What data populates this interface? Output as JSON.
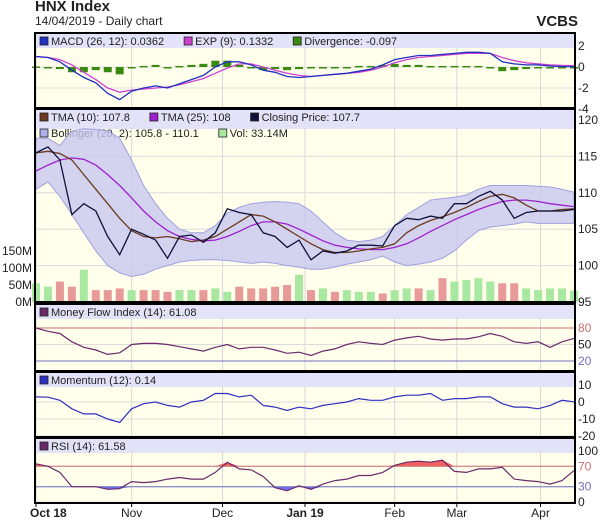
{
  "header": {
    "title": "HNX Index",
    "subtitle": "14/04/2019 - Daily chart",
    "brand": "VCBS"
  },
  "colors": {
    "panel_bg": "#ffffec",
    "legend_bg": "#e2e2f8",
    "close": "#10103a",
    "tma10": "#6b3a1e",
    "tma25": "#a020d0",
    "bollinger_fill": "#c8c8f0",
    "bollinger_line": "#a0a0e0",
    "vol_up": "#a8e8a0",
    "vol_down": "#e89a98",
    "macd": "#2030c0",
    "exp": "#d040d0",
    "divergence": "#3a8a10",
    "mfi": "#6a2a6a",
    "momentum": "#3030c0",
    "rsi": "#6a2a6a",
    "upper_line": "#d07070",
    "lower_line": "#7070c0",
    "rsi_over": "#f06060",
    "rsi_under": "#7070f0"
  },
  "x_axis": {
    "ticks": [
      {
        "label": "Oct 18",
        "at": 0,
        "bold": true
      },
      {
        "label": "Nov",
        "at": 8,
        "bold": false
      },
      {
        "label": "Dec",
        "at": 15.6,
        "bold": false
      },
      {
        "label": "Jan 19",
        "at": 22.5,
        "bold": true
      },
      {
        "label": "Feb",
        "at": 30,
        "bold": false
      },
      {
        "label": "Mar",
        "at": 35.2,
        "bold": false
      },
      {
        "label": "Apr",
        "at": 42.2,
        "bold": false
      }
    ]
  },
  "chart_data": [
    {
      "type": "bar",
      "panel": "macd",
      "legend": [
        {
          "label": "MACD (26, 12): 0.0362",
          "color": "#2030c0"
        },
        {
          "label": "EXP (9): 0.1332",
          "color": "#d040d0"
        },
        {
          "label": "Divergence: -0.097",
          "color": "#3a8a10"
        }
      ],
      "ylim": [
        -4,
        2
      ],
      "yticks": [
        "2",
        "0",
        "-2",
        "-4"
      ],
      "ytick_values": [
        2,
        0,
        -2,
        -4
      ],
      "series": [
        {
          "name": "MACD (26, 12)",
          "kind": "line",
          "values": [
            1.0,
            0.9,
            0.5,
            -0.3,
            -1.0,
            -1.5,
            -2.5,
            -3.1,
            -2.3,
            -2.0,
            -1.8,
            -2.0,
            -1.6,
            -1.2,
            -0.8,
            0.0,
            0.5,
            0.5,
            0.2,
            -0.3,
            -0.5,
            -0.9,
            -1.0,
            -0.9,
            -0.8,
            -0.7,
            -0.6,
            -0.4,
            -0.2,
            0.2,
            0.7,
            0.9,
            1.1,
            1.1,
            1.2,
            1.3,
            1.4,
            1.4,
            1.3,
            0.5,
            0.3,
            0.2,
            0.2,
            0.1,
            0.05,
            0.04
          ]
        },
        {
          "name": "EXP (9)",
          "kind": "line",
          "values": [
            1.0,
            0.9,
            0.7,
            0.2,
            -0.5,
            -1.2,
            -2.0,
            -2.4,
            -2.2,
            -2.1,
            -2.0,
            -1.9,
            -1.7,
            -1.4,
            -1.1,
            -0.6,
            -0.1,
            0.3,
            0.3,
            0.0,
            -0.3,
            -0.6,
            -0.8,
            -0.9,
            -0.8,
            -0.7,
            -0.6,
            -0.5,
            -0.3,
            0.0,
            0.4,
            0.7,
            0.9,
            1.0,
            1.1,
            1.2,
            1.3,
            1.3,
            1.3,
            0.9,
            0.6,
            0.4,
            0.3,
            0.2,
            0.15,
            0.13
          ]
        },
        {
          "name": "Divergence",
          "kind": "bar",
          "values": [
            0.05,
            0.0,
            -0.2,
            -0.5,
            -0.5,
            -0.3,
            -0.5,
            -0.7,
            -0.1,
            0.1,
            0.2,
            -0.1,
            0.1,
            0.2,
            0.3,
            0.6,
            0.6,
            0.2,
            -0.1,
            -0.3,
            -0.2,
            -0.3,
            -0.2,
            0.0,
            0.0,
            0.0,
            0.0,
            0.1,
            0.1,
            0.2,
            0.3,
            0.2,
            0.2,
            0.1,
            0.1,
            0.1,
            0.1,
            0.1,
            0.0,
            -0.4,
            -0.3,
            -0.2,
            -0.1,
            -0.1,
            -0.1,
            -0.097
          ]
        }
      ]
    },
    {
      "type": "line",
      "panel": "price",
      "legend": [
        {
          "label": "TMA (10): 107.8",
          "color": "#6b3a1e"
        },
        {
          "label": "TMA (25): 108",
          "color": "#a020d0"
        },
        {
          "label": "Closing Price: 107.7",
          "color": "#10103a"
        },
        {
          "label": "Bollinger (20, 2): 105.8 - 110.1",
          "color": "#b0b0ec"
        },
        {
          "label": "Vol: 33.14M",
          "color": "#a8e8a0"
        }
      ],
      "ylim": [
        95,
        120
      ],
      "yticks": [
        "120",
        "115",
        "110",
        "105",
        "100",
        "95"
      ],
      "ytick_values": [
        120,
        115,
        110,
        105,
        100,
        95
      ],
      "volume_ticks": [
        "150M",
        "100M",
        "50M",
        "0M"
      ],
      "volume_tick_values": [
        150,
        100,
        50,
        0
      ],
      "series": [
        {
          "name": "Closing Price",
          "values": [
            115.5,
            116.3,
            114.5,
            107,
            108.5,
            107.5,
            104,
            101.5,
            105,
            104.3,
            103.5,
            101,
            104,
            104.2,
            103.2,
            104.5,
            107.8,
            107.3,
            107,
            104.5,
            104,
            102.5,
            103.5,
            100.8,
            102,
            101.7,
            102,
            102.8,
            102.8,
            102.7,
            105.5,
            106.5,
            106.3,
            106.8,
            106.5,
            108.5,
            108.5,
            109.5,
            110.2,
            109,
            106.5,
            107.3,
            107.5,
            107.5,
            107.5,
            107.7
          ]
        },
        {
          "name": "TMA (10)",
          "values": [
            115.5,
            115.7,
            115.4,
            114.5,
            112.5,
            110.5,
            108.5,
            106.5,
            104.8,
            104,
            103.8,
            104,
            103.7,
            103.3,
            103.5,
            104,
            105,
            106,
            107,
            106.8,
            106,
            105,
            104,
            103,
            102.2,
            101.8,
            101.8,
            102,
            102.3,
            102.5,
            103,
            104.5,
            105.5,
            106.2,
            106.7,
            107.3,
            108,
            108.8,
            109.5,
            109.8,
            109.3,
            108.3,
            107.5,
            107.5,
            107.7,
            107.8
          ]
        },
        {
          "name": "TMA (25)",
          "values": [
            113,
            113.8,
            114.5,
            114.8,
            114.6,
            113.8,
            112.5,
            111,
            109.3,
            107.5,
            106,
            104.8,
            104,
            103.6,
            103.4,
            103.5,
            104,
            104.7,
            105.5,
            106,
            106,
            105.7,
            105,
            104.2,
            103.4,
            102.8,
            102.5,
            102.3,
            102.2,
            102.2,
            102.5,
            103,
            103.8,
            104.7,
            105.5,
            106.3,
            107,
            107.7,
            108.3,
            108.8,
            109,
            109,
            108.8,
            108.5,
            108.3,
            108.1
          ]
        },
        {
          "name": "Bollinger upper",
          "values": [
            117.5,
            117.5,
            116.5,
            118.5,
            118.8,
            118.7,
            118.5,
            117.5,
            114.5,
            111,
            108.5,
            106.5,
            105,
            104.5,
            104.5,
            105.5,
            107.2,
            108,
            108.5,
            108.7,
            108.8,
            108.7,
            108.5,
            107.5,
            106,
            104.5,
            103.5,
            103.3,
            103.5,
            104,
            105.5,
            107,
            108,
            109,
            109.2,
            109.4,
            109.7,
            110.5,
            111,
            111,
            111,
            111,
            110.9,
            110.8,
            110.5,
            110.1
          ]
        },
        {
          "name": "Bollinger lower",
          "values": [
            110.5,
            111.5,
            109.5,
            107,
            104.5,
            102,
            100,
            99,
            98.5,
            98.8,
            99.5,
            100,
            100.5,
            100.7,
            100.8,
            100.8,
            100.7,
            100.5,
            100.3,
            100.5,
            100.3,
            100,
            99.8,
            99.5,
            99.5,
            99.8,
            100.2,
            100.5,
            100.8,
            101.3,
            100.5,
            100,
            100.2,
            100.5,
            101,
            102,
            103.5,
            104.8,
            105.3,
            105.5,
            105.7,
            106,
            105.8,
            105.8,
            105.8,
            105.8
          ]
        },
        {
          "name": "Vol",
          "unit": "M",
          "values": [
            55,
            45,
            60,
            45,
            95,
            35,
            35,
            40,
            35,
            35,
            35,
            30,
            35,
            35,
            35,
            40,
            30,
            45,
            40,
            40,
            45,
            50,
            80,
            35,
            40,
            30,
            35,
            30,
            30,
            25,
            35,
            40,
            40,
            35,
            70,
            60,
            65,
            70,
            60,
            55,
            55,
            40,
            35,
            40,
            40,
            33.14
          ]
        }
      ]
    },
    {
      "type": "line",
      "panel": "mfi",
      "legend": [
        {
          "label": "Money Flow Index (14): 61.08",
          "color": "#6a2a6a"
        }
      ],
      "ylim": [
        0,
        100
      ],
      "yticks": [
        "80",
        "50",
        "20"
      ],
      "ytick_values": [
        80,
        50,
        20
      ],
      "thresholds": [
        80,
        20
      ],
      "series": [
        {
          "name": "Money Flow Index (14)",
          "values": [
            80,
            74,
            70,
            55,
            45,
            40,
            32,
            35,
            50,
            52,
            52,
            50,
            46,
            42,
            38,
            45,
            50,
            42,
            45,
            45,
            40,
            34,
            36,
            30,
            38,
            42,
            50,
            55,
            52,
            50,
            58,
            62,
            65,
            60,
            58,
            60,
            60,
            64,
            70,
            65,
            55,
            52,
            55,
            45,
            55,
            61.08
          ]
        }
      ]
    },
    {
      "type": "line",
      "panel": "momentum",
      "legend": [
        {
          "label": "Momentum (12): 0.14",
          "color": "#3030c0"
        }
      ],
      "ylim": [
        -20,
        10
      ],
      "yticks": [
        "10",
        "0",
        "-10",
        "-20"
      ],
      "ytick_values": [
        10,
        0,
        -10,
        -20
      ],
      "series": [
        {
          "name": "Momentum (12)",
          "values": [
            3,
            2.8,
            1,
            -4,
            -7,
            -7,
            -10,
            -12,
            -4,
            -1,
            0,
            -2,
            -3,
            0,
            1,
            5,
            5,
            3,
            4,
            -2,
            -3,
            -5,
            -3,
            -4,
            -2,
            -1,
            0,
            2,
            1,
            1,
            3,
            4,
            4,
            5,
            1,
            2,
            2,
            3,
            3,
            -1,
            -3,
            -3,
            -4,
            -2,
            1,
            0.14
          ]
        }
      ]
    },
    {
      "type": "area",
      "panel": "rsi",
      "legend": [
        {
          "label": "RSI (14): 61.58",
          "color": "#6a2a6a"
        }
      ],
      "ylim": [
        0,
        100
      ],
      "yticks": [
        "100",
        "70",
        "30",
        "0"
      ],
      "ytick_values": [
        100,
        70,
        30,
        0
      ],
      "thresholds": [
        70,
        30
      ],
      "series": [
        {
          "name": "RSI (14)",
          "values": [
            75,
            70,
            58,
            30,
            30,
            30,
            25,
            26,
            40,
            38,
            40,
            45,
            48,
            45,
            45,
            58,
            78,
            65,
            63,
            50,
            28,
            22,
            32,
            25,
            35,
            42,
            45,
            52,
            52,
            58,
            72,
            78,
            80,
            78,
            82,
            60,
            58,
            65,
            65,
            68,
            45,
            42,
            40,
            35,
            42,
            61.58
          ]
        }
      ]
    }
  ]
}
